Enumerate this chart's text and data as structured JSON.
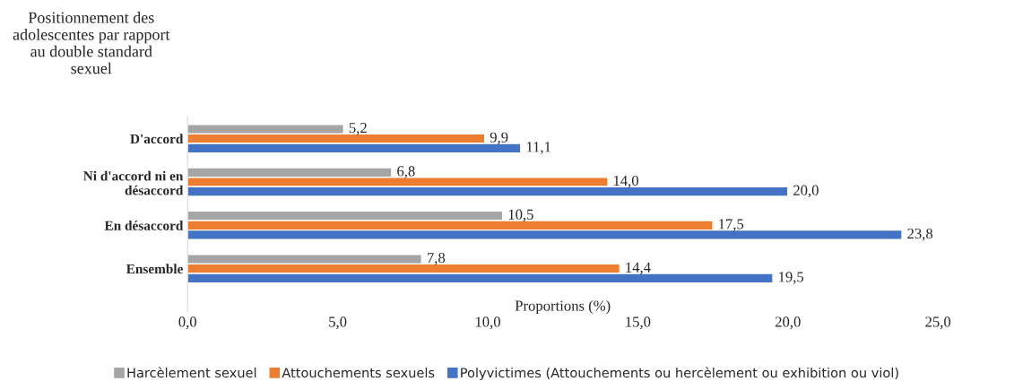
{
  "chart_data": {
    "type": "bar",
    "orientation": "horizontal",
    "title": "Positionnement des\nadolescentes par rapport\nau double standard\nsexuel",
    "xlabel": "Proportions (%)",
    "categories": [
      "D'accord",
      "Ni d'accord ni en\ndésaccord",
      "En désaccord",
      "Ensemble"
    ],
    "series": [
      {
        "name": "Harcèlement sexuel",
        "color": "#a5a5a5",
        "values": [
          5.2,
          6.8,
          10.5,
          7.8
        ],
        "value_labels": [
          "5,2",
          "6,8",
          "10,5",
          "7,8"
        ]
      },
      {
        "name": "Attouchements sexuels",
        "color": "#ed7d31",
        "values": [
          9.9,
          14.0,
          17.5,
          14.4
        ],
        "value_labels": [
          "9,9",
          "14,0",
          "17,5",
          "14,4"
        ]
      },
      {
        "name": "Polyvictimes (Attouchements ou hercèlement ou exhibition ou viol)",
        "color": "#4472c4",
        "values": [
          11.1,
          20.0,
          23.8,
          19.5
        ],
        "value_labels": [
          "11,1",
          "20,0",
          "23,8",
          "19,5"
        ]
      }
    ],
    "xlim": [
      0,
      25
    ],
    "xticks": [
      {
        "value": 0,
        "label": "0,0"
      },
      {
        "value": 5,
        "label": "5,0"
      },
      {
        "value": 10,
        "label": "10,0"
      },
      {
        "value": 15,
        "label": "15,0"
      },
      {
        "value": 20,
        "label": "20,0"
      },
      {
        "value": 25,
        "label": "25,0"
      }
    ],
    "legend": "bottom",
    "grid": false
  }
}
